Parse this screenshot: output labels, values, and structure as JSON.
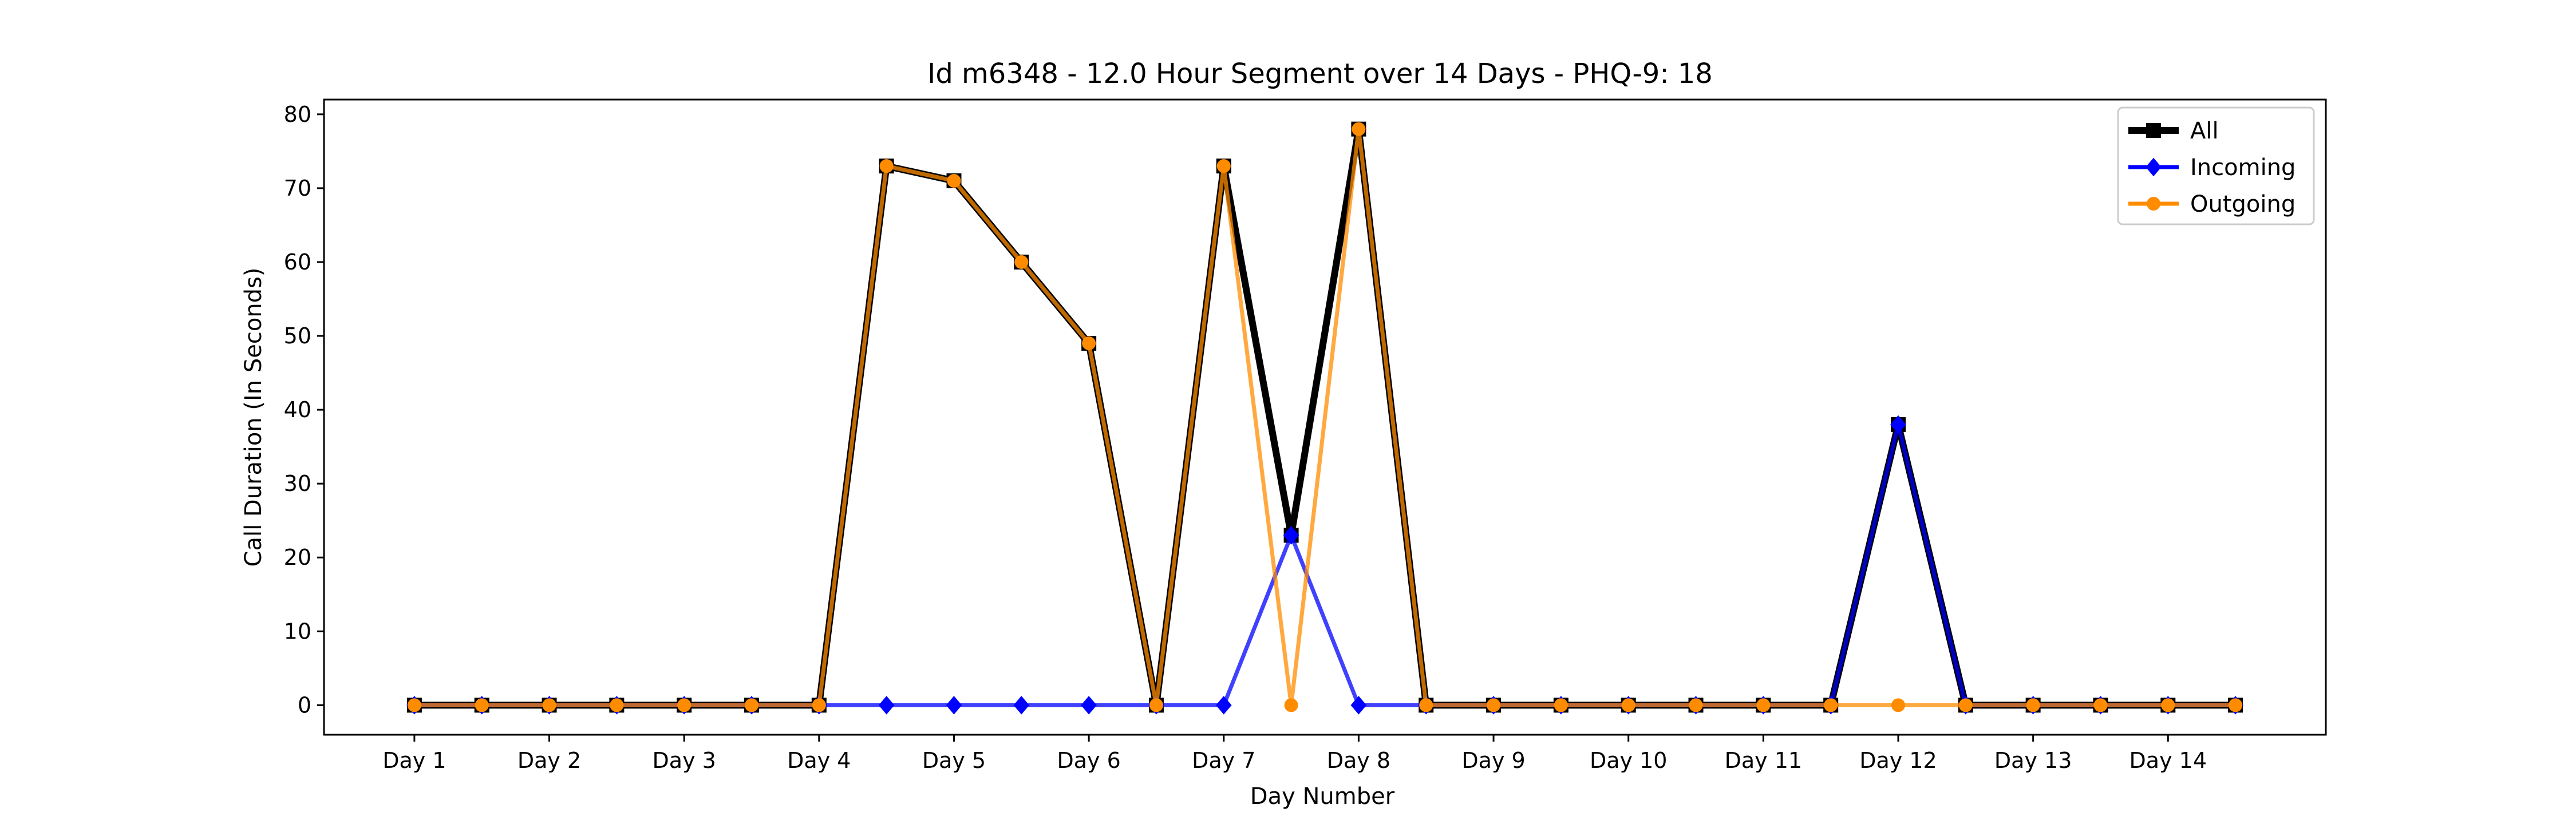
{
  "chart_data": {
    "type": "line",
    "title": "Id m6348 - 12.0 Hour Segment over 14 Days - PHQ-9: 18",
    "xlabel": "Day Number",
    "ylabel": "Call Duration (In Seconds)",
    "ylim": [
      -4,
      82
    ],
    "yticks": [
      0,
      10,
      20,
      30,
      40,
      50,
      60,
      70,
      80
    ],
    "x_tick_labels": [
      "Day 1",
      "Day 2",
      "Day 3",
      "Day 4",
      "Day 5",
      "Day 6",
      "Day 7",
      "Day 8",
      "Day 9",
      "Day 10",
      "Day 11",
      "Day 12",
      "Day 13",
      "Day 14"
    ],
    "x_points": [
      1,
      1.5,
      2,
      2.5,
      3,
      3.5,
      4,
      4.5,
      5,
      5.5,
      6,
      6.5,
      7,
      7.5,
      8,
      8.5,
      9,
      9.5,
      10,
      10.5,
      11,
      11.5,
      12,
      12.5,
      13,
      13.5,
      14,
      14.5
    ],
    "xlim": [
      0.33,
      15.17
    ],
    "grid": false,
    "legend_position": "top-right",
    "series": [
      {
        "name": "All",
        "color": "#000000",
        "marker": "square",
        "values": [
          0,
          0,
          0,
          0,
          0,
          0,
          0,
          73,
          71,
          60,
          49,
          0,
          73,
          23,
          78,
          0,
          0,
          0,
          0,
          0,
          0,
          0,
          38,
          0,
          0,
          0,
          0,
          0
        ]
      },
      {
        "name": "Incoming",
        "color": "#0000ff",
        "marker": "diamond",
        "values": [
          0,
          0,
          0,
          0,
          0,
          0,
          0,
          0,
          0,
          0,
          0,
          0,
          0,
          23,
          0,
          0,
          0,
          0,
          0,
          0,
          0,
          0,
          38,
          0,
          0,
          0,
          0,
          0
        ]
      },
      {
        "name": "Outgoing",
        "color": "#ff8c00",
        "marker": "circle",
        "values": [
          0,
          0,
          0,
          0,
          0,
          0,
          0,
          73,
          71,
          60,
          49,
          0,
          73,
          0,
          78,
          0,
          0,
          0,
          0,
          0,
          0,
          0,
          0,
          0,
          0,
          0,
          0,
          0
        ]
      }
    ]
  }
}
